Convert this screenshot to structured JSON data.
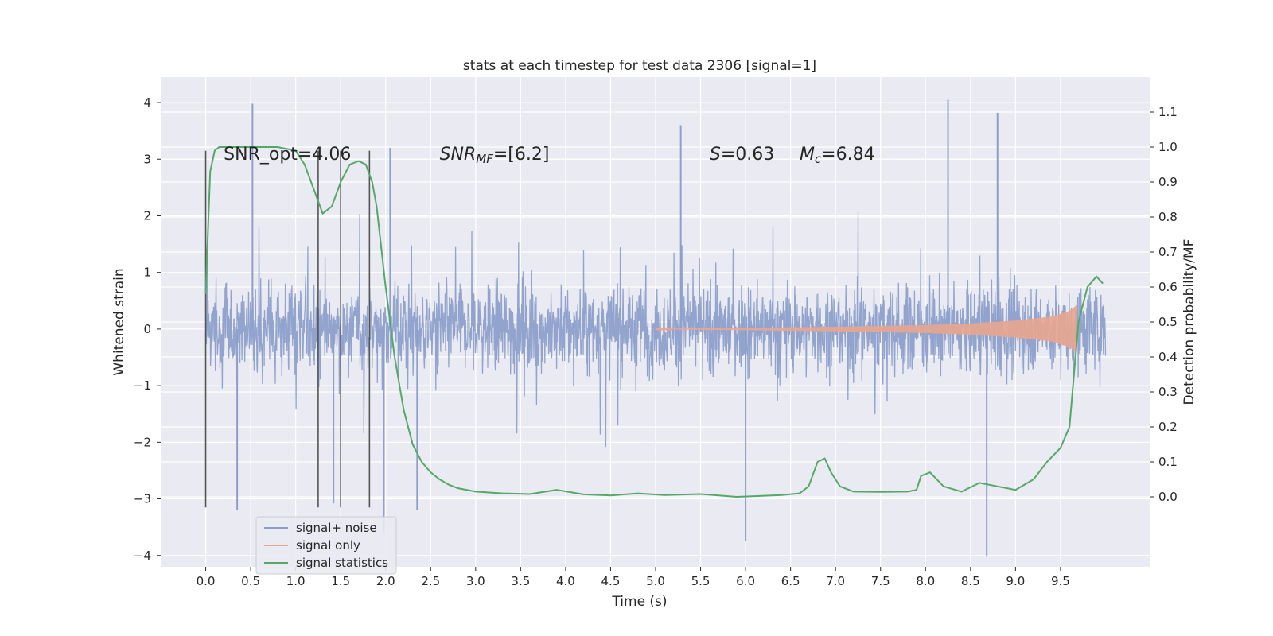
{
  "chart_data": {
    "type": "line",
    "title": "stats at each timestep for test data 2306 [signal=1]",
    "xlabel": "Time (s)",
    "ylabel_left": "Whitened strain",
    "ylabel_right": "Detection probability/MF",
    "xlim": [
      -0.5,
      10.5
    ],
    "ylim_left": [
      -4.2,
      4.45
    ],
    "ylim_right": [
      -0.2,
      1.2
    ],
    "x_ticks": [
      "0.0",
      "0.5",
      "1.0",
      "1.5",
      "2.0",
      "2.5",
      "3.0",
      "3.5",
      "4.0",
      "4.5",
      "5.0",
      "5.5",
      "6.0",
      "6.5",
      "7.0",
      "7.5",
      "8.0",
      "8.5",
      "9.0",
      "9.5"
    ],
    "y_ticks_left": [
      "4",
      "3",
      "2",
      "1",
      "0",
      "−1",
      "−2",
      "−3",
      "−4"
    ],
    "y_ticks_right": [
      "1.1",
      "1.0",
      "0.9",
      "0.8",
      "0.7",
      "0.6",
      "0.5",
      "0.4",
      "0.3",
      "0.2",
      "0.1",
      "0.0"
    ],
    "grid": true,
    "legend_position": "lower-left",
    "annotations": [
      {
        "text": "SNR_opt=4.06",
        "x": 0.2,
        "y": 3.1
      },
      {
        "text": "SNR",
        "sub": "MF",
        "suffix": "=[6.2]",
        "x": 2.6,
        "y": 3.1
      },
      {
        "text": "S",
        "suffix": "=0.63",
        "x": 5.6,
        "y": 3.1
      },
      {
        "text": "M",
        "sub": "c",
        "suffix": "=6.84",
        "x": 6.6,
        "y": 3.1
      }
    ],
    "vlines": [
      {
        "x": 0.0,
        "y": [
          -3.15,
          3.15
        ]
      },
      {
        "x": 1.25,
        "y": [
          -3.15,
          3.15
        ]
      },
      {
        "x": 1.5,
        "y": [
          -3.15,
          3.15
        ]
      },
      {
        "x": 1.82,
        "y": [
          -3.15,
          3.15
        ]
      }
    ],
    "series": [
      {
        "name": "signal+ noise",
        "color": "#8da0cb",
        "x_range": [
          0.0,
          10.0
        ],
        "noise_std": 0.85,
        "y_peaks": [
          [
            0.52,
            3.98
          ],
          [
            2.05,
            3.2
          ],
          [
            5.28,
            3.6
          ],
          [
            8.25,
            4.05
          ],
          [
            8.8,
            3.82
          ],
          [
            1.98,
            -3.6
          ],
          [
            6.0,
            -3.75
          ],
          [
            8.68,
            -4.02
          ],
          [
            2.35,
            -3.2
          ],
          [
            1.42,
            -3.08
          ],
          [
            0.35,
            -3.2
          ]
        ]
      },
      {
        "name": "signal only",
        "color": "#e8a58f",
        "x_range": [
          5.0,
          9.68
        ],
        "envelope": [
          [
            5.0,
            0.005
          ],
          [
            6.0,
            0.02
          ],
          [
            7.0,
            0.04
          ],
          [
            8.0,
            0.07
          ],
          [
            8.5,
            0.1
          ],
          [
            9.0,
            0.15
          ],
          [
            9.4,
            0.22
          ],
          [
            9.6,
            0.32
          ],
          [
            9.68,
            0.42
          ]
        ]
      },
      {
        "name": "signal statistics",
        "color": "#55a868",
        "axis": "right",
        "x": [
          0.0,
          0.05,
          0.1,
          0.15,
          0.3,
          0.5,
          0.8,
          1.0,
          1.1,
          1.2,
          1.3,
          1.4,
          1.5,
          1.6,
          1.7,
          1.78,
          1.85,
          1.9,
          2.0,
          2.1,
          2.2,
          2.3,
          2.4,
          2.5,
          2.6,
          2.7,
          2.8,
          3.0,
          3.3,
          3.6,
          3.9,
          4.2,
          4.5,
          4.8,
          5.1,
          5.5,
          5.9,
          6.1,
          6.4,
          6.6,
          6.7,
          6.8,
          6.88,
          6.95,
          7.05,
          7.2,
          7.5,
          7.8,
          7.9,
          7.95,
          8.05,
          8.2,
          8.4,
          8.6,
          8.8,
          9.0,
          9.2,
          9.35,
          9.5,
          9.6,
          9.7,
          9.8,
          9.9,
          9.97
        ],
        "y": [
          0.58,
          0.93,
          0.99,
          1.0,
          1.0,
          1.0,
          1.0,
          0.99,
          0.95,
          0.88,
          0.81,
          0.83,
          0.9,
          0.95,
          0.96,
          0.95,
          0.9,
          0.83,
          0.6,
          0.4,
          0.25,
          0.15,
          0.1,
          0.07,
          0.05,
          0.035,
          0.025,
          0.015,
          0.01,
          0.008,
          0.02,
          0.007,
          0.004,
          0.01,
          0.005,
          0.008,
          0.0,
          0.002,
          0.005,
          0.01,
          0.03,
          0.1,
          0.11,
          0.07,
          0.03,
          0.015,
          0.014,
          0.015,
          0.02,
          0.06,
          0.07,
          0.03,
          0.015,
          0.04,
          0.03,
          0.02,
          0.05,
          0.1,
          0.14,
          0.2,
          0.5,
          0.6,
          0.63,
          0.61
        ]
      }
    ]
  }
}
